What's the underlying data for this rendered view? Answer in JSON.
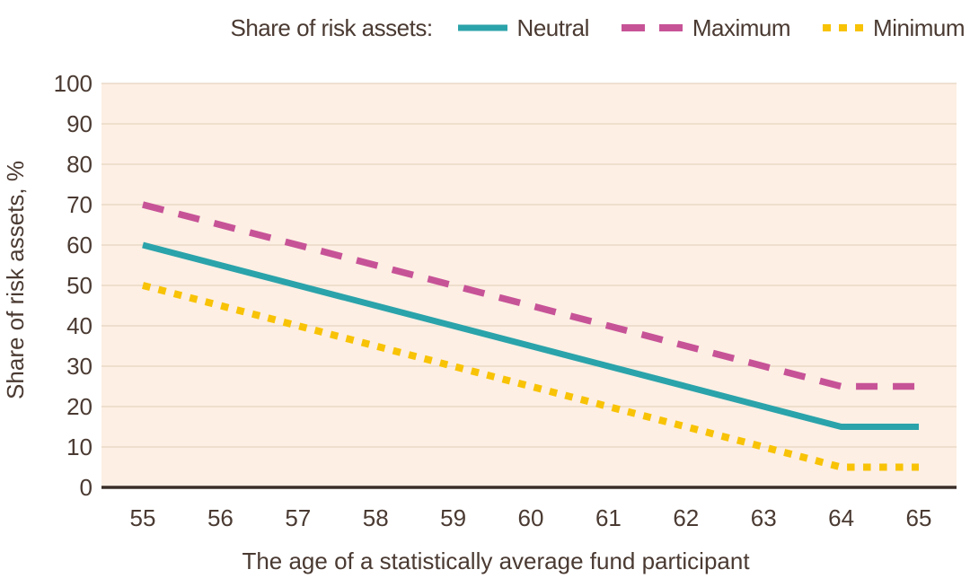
{
  "chart_data": {
    "type": "line",
    "legend_title": "Share of risk assets:",
    "legend_position": "top",
    "x": [
      55,
      56,
      57,
      58,
      59,
      60,
      61,
      62,
      63,
      64,
      65
    ],
    "series": [
      {
        "name": "Neutral",
        "color": "#2BA3AA",
        "line_style": "solid",
        "values": [
          60,
          55,
          50,
          45,
          40,
          35,
          30,
          25,
          20,
          15,
          15
        ]
      },
      {
        "name": "Maximum",
        "color": "#C75397",
        "line_style": "dashed",
        "values": [
          70,
          65,
          60,
          55,
          50,
          45,
          40,
          35,
          30,
          25,
          25
        ]
      },
      {
        "name": "Minimum",
        "color": "#F8C306",
        "line_style": "dotted",
        "values": [
          50,
          45,
          40,
          35,
          30,
          25,
          20,
          15,
          10,
          5,
          5
        ]
      }
    ],
    "xlabel": "The age of a statistically average fund participant",
    "ylabel": "Share of risk assets, %",
    "ylim": [
      0,
      100
    ],
    "yticks": [
      0,
      10,
      20,
      30,
      40,
      50,
      60,
      70,
      80,
      90,
      100
    ],
    "grid": true,
    "colors": {
      "page_background": "#FFFFFF",
      "plot_background": "#FDEFE4",
      "gridline": "#E9D8C5",
      "axis_line": "#3A2E28",
      "text": "#4A3A32"
    }
  }
}
